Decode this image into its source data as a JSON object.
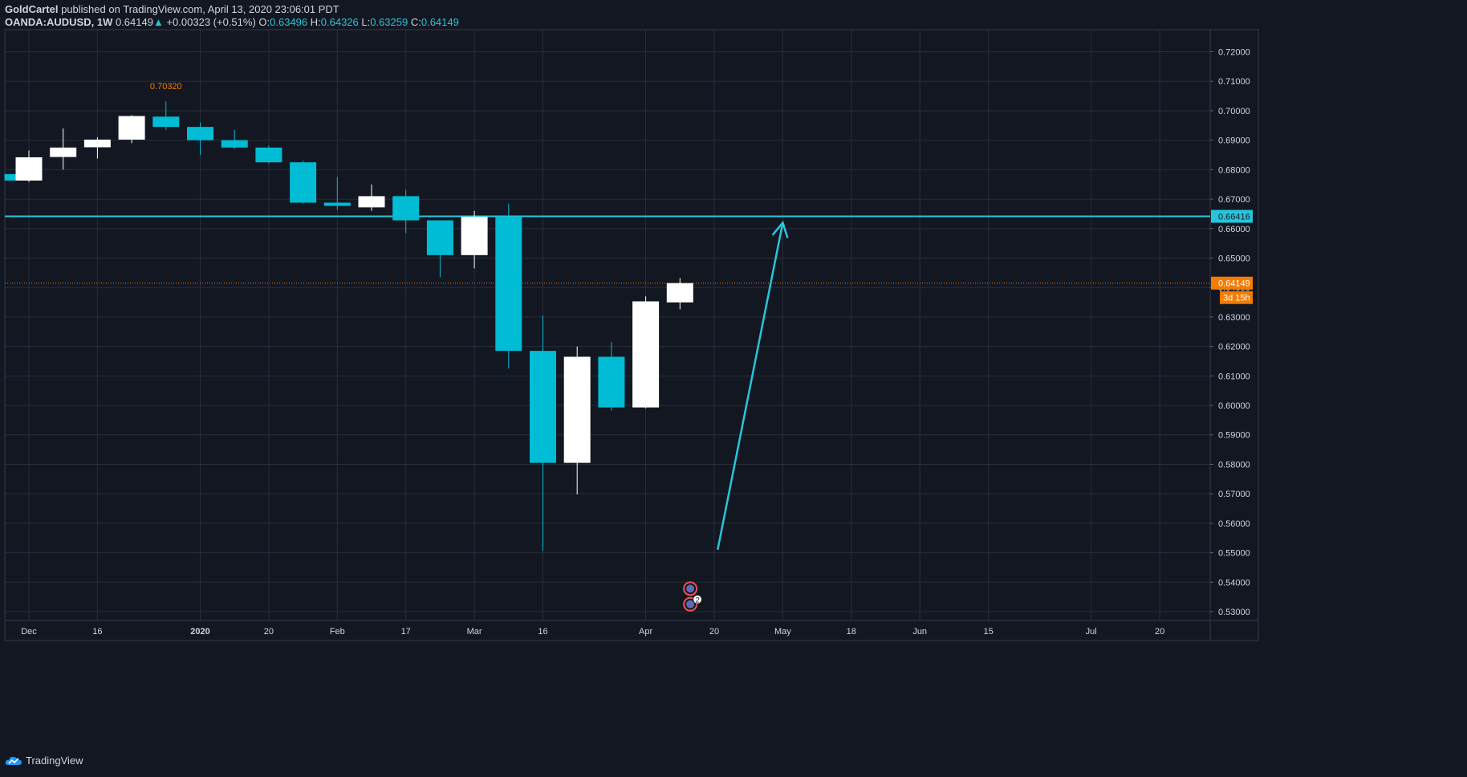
{
  "header": {
    "author": "GoldCartel",
    "published_text": "published on TradingView.com, April 13, 2020 23:06:01 PDT",
    "symbol": "OANDA:AUDUSD,",
    "interval": "1W",
    "last": "0.64149",
    "change_arrow": "▲",
    "change": "+0.00323 (+0.51%)",
    "o_label": "O:",
    "o_value": "0.63496",
    "h_label": "H:",
    "h_value": "0.64326",
    "l_label": "L:",
    "l_value": "0.63259",
    "c_label": "C:",
    "c_value": "0.64149"
  },
  "footer": {
    "brand": "TradingView",
    "icon": "tradingview-cloud-icon"
  },
  "colors": {
    "background": "#131722",
    "grid": "#2a2e39",
    "up": "#ffffff",
    "down": "#00bcd4",
    "hline": "#26c6da",
    "last_price": "#f57c00",
    "text": "#d1d4dc"
  },
  "chart_data": {
    "type": "candlestick",
    "interval": "1W",
    "ylim": [
      0.527,
      0.7275
    ],
    "y_ticks": [
      "0.72000",
      "0.71000",
      "0.70000",
      "0.69000",
      "0.68000",
      "0.67000",
      "0.66000",
      "0.65000",
      "0.64000",
      "0.63000",
      "0.62000",
      "0.61000",
      "0.60000",
      "0.59000",
      "0.58000",
      "0.57000",
      "0.56000",
      "0.55000",
      "0.54000",
      "0.53000"
    ],
    "x_ticks": [
      {
        "label": "Dec",
        "index": 0
      },
      {
        "label": "16",
        "index": 2
      },
      {
        "label": "2020",
        "index": 5
      },
      {
        "label": "20",
        "index": 7
      },
      {
        "label": "Feb",
        "index": 9
      },
      {
        "label": "17",
        "index": 11
      },
      {
        "label": "Mar",
        "index": 13
      },
      {
        "label": "16",
        "index": 15
      },
      {
        "label": "Apr",
        "index": 18
      },
      {
        "label": "20",
        "index": 20
      },
      {
        "label": "May",
        "index": 22
      },
      {
        "label": "18",
        "index": 24
      },
      {
        "label": "Jun",
        "index": 26
      },
      {
        "label": "15",
        "index": 28
      },
      {
        "label": "Jul",
        "index": 31
      },
      {
        "label": "20",
        "index": 33
      }
    ],
    "x_count": 35,
    "candles": [
      {
        "index": -0.7,
        "open": 0.6785,
        "high": 0.6785,
        "low": 0.6763,
        "close": 0.6763
      },
      {
        "index": 0,
        "open": 0.6763,
        "high": 0.6865,
        "low": 0.6758,
        "close": 0.6842
      },
      {
        "index": 1,
        "open": 0.6843,
        "high": 0.694,
        "low": 0.68,
        "close": 0.6875
      },
      {
        "index": 2,
        "open": 0.6876,
        "high": 0.691,
        "low": 0.6838,
        "close": 0.6902
      },
      {
        "index": 3,
        "open": 0.6902,
        "high": 0.6985,
        "low": 0.689,
        "close": 0.6982
      },
      {
        "index": 4,
        "open": 0.698,
        "high": 0.7032,
        "low": 0.6935,
        "close": 0.6945
      },
      {
        "index": 5,
        "open": 0.6945,
        "high": 0.696,
        "low": 0.685,
        "close": 0.69
      },
      {
        "index": 6,
        "open": 0.69,
        "high": 0.6935,
        "low": 0.687,
        "close": 0.6875
      },
      {
        "index": 7,
        "open": 0.6875,
        "high": 0.6882,
        "low": 0.682,
        "close": 0.6825
      },
      {
        "index": 8,
        "open": 0.6825,
        "high": 0.683,
        "low": 0.6685,
        "close": 0.6688
      },
      {
        "index": 9,
        "open": 0.6688,
        "high": 0.6775,
        "low": 0.6663,
        "close": 0.6677
      },
      {
        "index": 10,
        "open": 0.6672,
        "high": 0.675,
        "low": 0.666,
        "close": 0.671
      },
      {
        "index": 11,
        "open": 0.671,
        "high": 0.6732,
        "low": 0.6585,
        "close": 0.6628
      },
      {
        "index": 12,
        "open": 0.6628,
        "high": 0.6628,
        "low": 0.6435,
        "close": 0.651
      },
      {
        "index": 13,
        "open": 0.651,
        "high": 0.666,
        "low": 0.6465,
        "close": 0.664
      },
      {
        "index": 14,
        "open": 0.6641,
        "high": 0.6685,
        "low": 0.6125,
        "close": 0.6185
      },
      {
        "index": 15,
        "open": 0.6185,
        "high": 0.6305,
        "low": 0.5506,
        "close": 0.5805
      },
      {
        "index": 16,
        "open": 0.5805,
        "high": 0.62,
        "low": 0.5698,
        "close": 0.6165
      },
      {
        "index": 17,
        "open": 0.6165,
        "high": 0.6215,
        "low": 0.5982,
        "close": 0.5993
      },
      {
        "index": 18,
        "open": 0.5993,
        "high": 0.637,
        "low": 0.599,
        "close": 0.6353
      },
      {
        "index": 19,
        "open": 0.63496,
        "high": 0.64326,
        "low": 0.63259,
        "close": 0.64149
      }
    ],
    "high_annotation": {
      "index": 4,
      "value": "0.70320"
    },
    "horizontal_line": {
      "value": 0.66416,
      "label": "0.66416"
    },
    "last_price": {
      "value": 0.64149,
      "label": "0.64149",
      "countdown": "3d 15h"
    },
    "arrow": {
      "from": {
        "index": 20.1,
        "y": 0.551
      },
      "to": {
        "index": 22.0,
        "y": 0.662
      }
    },
    "event_markers": [
      {
        "index": 19.3,
        "y": 0.5378,
        "icon": "australia-flag-icon",
        "badge": ""
      },
      {
        "index": 19.3,
        "y": 0.5325,
        "icon": "us-flag-icon",
        "badge": "2"
      }
    ],
    "grid": true
  }
}
